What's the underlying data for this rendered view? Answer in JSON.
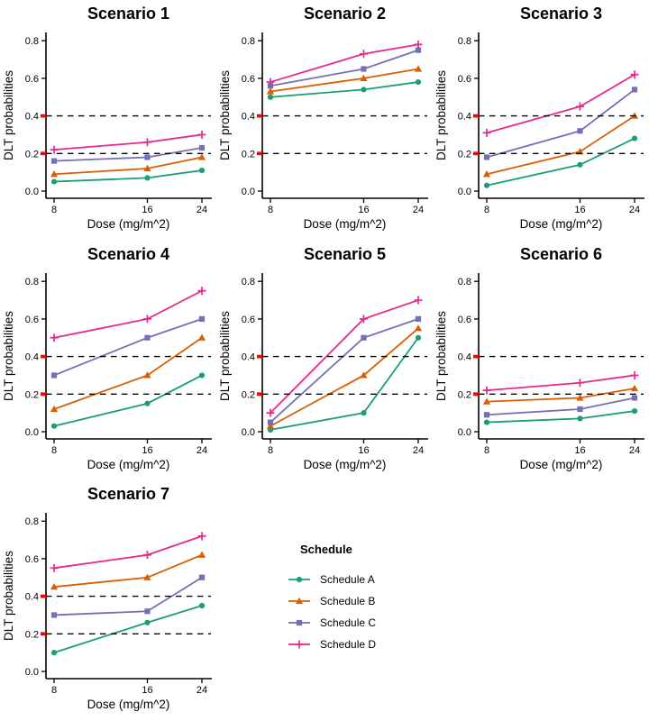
{
  "figure": {
    "background": "#ffffff",
    "text_color": "#000000",
    "highlight_color": "#ff0000",
    "xlabel": "Dose (mg/m^2)",
    "ylabel": "DLT probabilities",
    "x_scale": "log",
    "x_tick_values": [
      8,
      16,
      24
    ],
    "x_tick_labels": [
      "8",
      "16",
      "24"
    ],
    "y_tick_values": [
      0.0,
      0.2,
      0.4,
      0.6,
      0.8
    ],
    "y_tick_labels": [
      "0.0",
      "0.2",
      "0.4",
      "0.6",
      "0.8"
    ],
    "red_y_ticks": [
      0.2,
      0.4
    ],
    "dashed_reference_lines": [
      0.2,
      0.4
    ],
    "ylim": [
      0,
      0.8
    ]
  },
  "legend": {
    "title": "Schedule",
    "entries": [
      {
        "label": "Schedule A",
        "color": "#1B9E77",
        "marker": "circle"
      },
      {
        "label": "Schedule B",
        "color": "#D95F02",
        "marker": "triangle"
      },
      {
        "label": "Schedule C",
        "color": "#7570B3",
        "marker": "square"
      },
      {
        "label": "Schedule D",
        "color": "#E7298A",
        "marker": "plus"
      }
    ]
  },
  "chart_data": [
    {
      "type": "line",
      "title": "Scenario 1",
      "xlabel": "Dose (mg/m^2)",
      "ylabel": "DLT probabilities",
      "ylim": [
        0,
        0.8
      ],
      "x": [
        8,
        16,
        24
      ],
      "series": [
        {
          "name": "Schedule A",
          "values": [
            0.05,
            0.07,
            0.11
          ]
        },
        {
          "name": "Schedule B",
          "values": [
            0.09,
            0.12,
            0.18
          ]
        },
        {
          "name": "Schedule C",
          "values": [
            0.16,
            0.18,
            0.23
          ]
        },
        {
          "name": "Schedule D",
          "values": [
            0.22,
            0.26,
            0.3
          ]
        }
      ]
    },
    {
      "type": "line",
      "title": "Scenario 2",
      "xlabel": "Dose (mg/m^2)",
      "ylabel": "DLT probabilities",
      "ylim": [
        0,
        0.8
      ],
      "x": [
        8,
        16,
        24
      ],
      "series": [
        {
          "name": "Schedule A",
          "values": [
            0.5,
            0.54,
            0.58
          ]
        },
        {
          "name": "Schedule B",
          "values": [
            0.53,
            0.6,
            0.65
          ]
        },
        {
          "name": "Schedule C",
          "values": [
            0.56,
            0.65,
            0.75
          ]
        },
        {
          "name": "Schedule D",
          "values": [
            0.58,
            0.73,
            0.78
          ]
        }
      ]
    },
    {
      "type": "line",
      "title": "Scenario 3",
      "xlabel": "Dose (mg/m^2)",
      "ylabel": "DLT probabilities",
      "ylim": [
        0,
        0.8
      ],
      "x": [
        8,
        16,
        24
      ],
      "series": [
        {
          "name": "Schedule A",
          "values": [
            0.03,
            0.14,
            0.28
          ]
        },
        {
          "name": "Schedule B",
          "values": [
            0.09,
            0.21,
            0.4
          ]
        },
        {
          "name": "Schedule C",
          "values": [
            0.18,
            0.32,
            0.54
          ]
        },
        {
          "name": "Schedule D",
          "values": [
            0.31,
            0.45,
            0.62
          ]
        }
      ]
    },
    {
      "type": "line",
      "title": "Scenario 4",
      "xlabel": "Dose (mg/m^2)",
      "ylabel": "DLT probabilities",
      "ylim": [
        0,
        0.8
      ],
      "x": [
        8,
        16,
        24
      ],
      "series": [
        {
          "name": "Schedule A",
          "values": [
            0.03,
            0.15,
            0.3
          ]
        },
        {
          "name": "Schedule B",
          "values": [
            0.12,
            0.3,
            0.5
          ]
        },
        {
          "name": "Schedule C",
          "values": [
            0.3,
            0.5,
            0.6
          ]
        },
        {
          "name": "Schedule D",
          "values": [
            0.5,
            0.6,
            0.75
          ]
        }
      ]
    },
    {
      "type": "line",
      "title": "Scenario 5",
      "xlabel": "Dose (mg/m^2)",
      "ylabel": "DLT probabilities",
      "ylim": [
        0,
        0.8
      ],
      "x": [
        8,
        16,
        24
      ],
      "series": [
        {
          "name": "Schedule A",
          "values": [
            0.01,
            0.1,
            0.5
          ]
        },
        {
          "name": "Schedule B",
          "values": [
            0.03,
            0.3,
            0.55
          ]
        },
        {
          "name": "Schedule C",
          "values": [
            0.05,
            0.5,
            0.6
          ]
        },
        {
          "name": "Schedule D",
          "values": [
            0.1,
            0.6,
            0.7
          ]
        }
      ]
    },
    {
      "type": "line",
      "title": "Scenario 6",
      "xlabel": "Dose (mg/m^2)",
      "ylabel": "DLT probabilities",
      "ylim": [
        0,
        0.8
      ],
      "x": [
        8,
        16,
        24
      ],
      "series": [
        {
          "name": "Schedule A",
          "values": [
            0.05,
            0.07,
            0.11
          ]
        },
        {
          "name": "Schedule B",
          "values": [
            0.16,
            0.18,
            0.23
          ]
        },
        {
          "name": "Schedule C",
          "values": [
            0.09,
            0.12,
            0.18
          ]
        },
        {
          "name": "Schedule D",
          "values": [
            0.22,
            0.26,
            0.3
          ]
        }
      ]
    },
    {
      "type": "line",
      "title": "Scenario 7",
      "xlabel": "Dose (mg/m^2)",
      "ylabel": "DLT probabilities",
      "ylim": [
        0,
        0.8
      ],
      "x": [
        8,
        16,
        24
      ],
      "series": [
        {
          "name": "Schedule A",
          "values": [
            0.1,
            0.26,
            0.35
          ]
        },
        {
          "name": "Schedule B",
          "values": [
            0.45,
            0.5,
            0.62
          ]
        },
        {
          "name": "Schedule C",
          "values": [
            0.3,
            0.32,
            0.5
          ]
        },
        {
          "name": "Schedule D",
          "values": [
            0.55,
            0.62,
            0.72
          ]
        }
      ]
    }
  ]
}
